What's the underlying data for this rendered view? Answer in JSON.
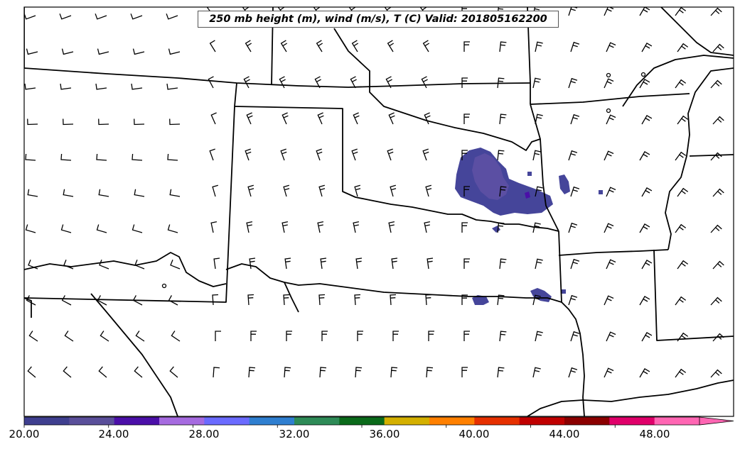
{
  "map": {
    "title": "250 mb height (m), wind (m/s), T (C) Valid: 201805162200"
  },
  "colorbar": {
    "tick_labels": [
      "20.00",
      "24.00",
      "28.00",
      "32.00",
      "36.00",
      "40.00",
      "44.00",
      "48.00"
    ],
    "tick_values": [
      20,
      24,
      28,
      32,
      36,
      40,
      44,
      48
    ],
    "range": [
      20,
      52
    ],
    "extend": "max",
    "colors": [
      "#3f3f8f",
      "#5a4f9a",
      "#4b0fa8",
      "#a66be0",
      "#6b6bff",
      "#2f7fd0",
      "#2e8b57",
      "#0a6a1a",
      "#d4b000",
      "#ff8000",
      "#e63000",
      "#c00000",
      "#8b0000",
      "#e0006a",
      "#ff66b3"
    ]
  },
  "colors": {
    "border": "#000000",
    "wind_barb": "#000000",
    "shading_main": "#45459a",
    "shading_core": "#5b4fa3"
  }
}
